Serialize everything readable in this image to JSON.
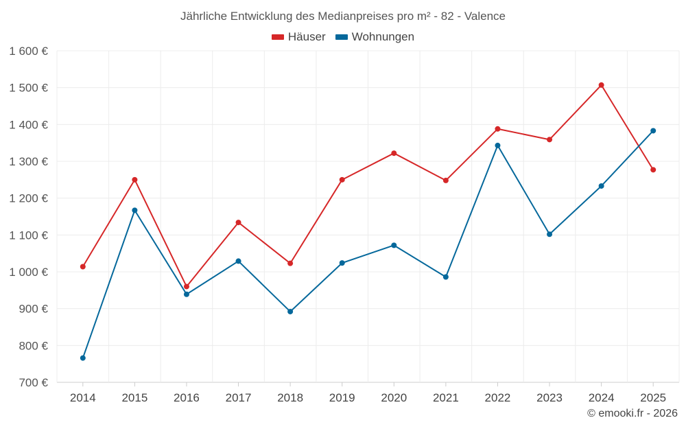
{
  "chart_data": {
    "type": "line",
    "title": "Jährliche Entwicklung des Medianpreises pro m² - 82 - Valence",
    "categories": [
      "2014",
      "2015",
      "2016",
      "2017",
      "2018",
      "2019",
      "2020",
      "2021",
      "2022",
      "2023",
      "2024",
      "2025"
    ],
    "series": [
      {
        "name": "Häuser",
        "color": "#d62728",
        "values": [
          1014,
          1250,
          960,
          1134,
          1023,
          1250,
          1322,
          1248,
          1388,
          1359,
          1507,
          1277
        ]
      },
      {
        "name": "Wohnungen",
        "color": "#05689b",
        "values": [
          766,
          1167,
          939,
          1029,
          892,
          1024,
          1072,
          986,
          1343,
          1102,
          1233,
          1383
        ]
      }
    ],
    "ylim": [
      700,
      1600
    ],
    "yticks": [
      700,
      800,
      900,
      1000,
      1100,
      1200,
      1300,
      1400,
      1500,
      1600
    ],
    "ytick_labels": [
      "700 €",
      "800 €",
      "900 €",
      "1 000 €",
      "1 100 €",
      "1 200 €",
      "1 300 €",
      "1 400 €",
      "1 500 €",
      "1 600 €"
    ],
    "xlabel": "",
    "ylabel": "",
    "grid": true,
    "legend_position": "top-center"
  },
  "credit": "© emooki.fr - 2026"
}
